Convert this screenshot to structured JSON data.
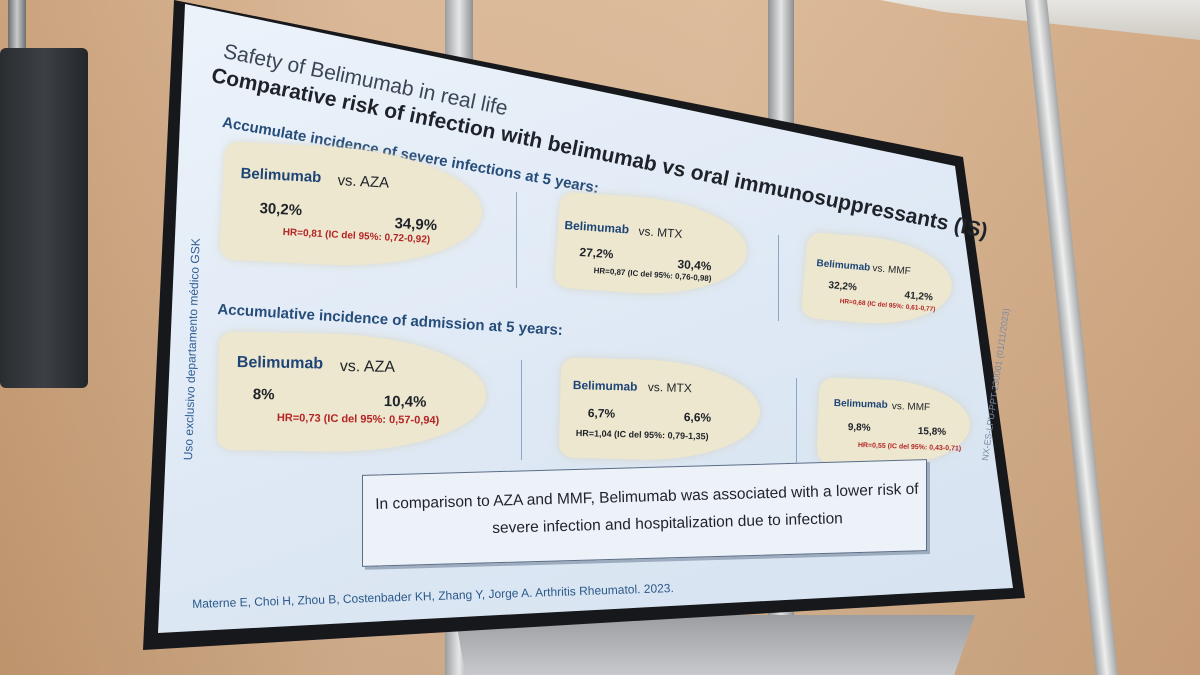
{
  "slide": {
    "title": "Safety of Belimumab in real life",
    "subtitle": "Comparative risk of infection with belimumab vs oral immunosuppressants (IS)",
    "side_note": "Uso exclusivo departamento médico GSK",
    "side_code": "NX-ES-LPU-PPT-230001 (01/11/2023)",
    "section1": {
      "heading": "Accumulate incidence of severe infections at 5 years:",
      "comparisons": [
        {
          "drug": "Belimumab",
          "vs": "vs. AZA",
          "left": "30,2%",
          "right": "34,9%",
          "hr": "HR=0,81 (IC del 95%: 0,72-0,92)"
        },
        {
          "drug": "Belimumab",
          "vs": "vs. MTX",
          "left": "27,2%",
          "right": "30,4%",
          "hr": "HR=0,87 (IC del 95%: 0,76-0,98)"
        },
        {
          "drug": "Belimumab",
          "vs": "vs. MMF",
          "left": "32,2%",
          "right": "41,2%",
          "hr": "HR=0,68 (IC del 95%: 0,61-0,77)"
        }
      ]
    },
    "section2": {
      "heading": "Accumulative incidence of admission at 5 years:",
      "comparisons": [
        {
          "drug": "Belimumab",
          "vs": "vs. AZA",
          "left": "8%",
          "right": "10,4%",
          "hr": "HR=0,73 (IC del 95%: 0,57-0,94)"
        },
        {
          "drug": "Belimumab",
          "vs": "vs. MTX",
          "left": "6,7%",
          "right": "6,6%",
          "hr": "HR=1,04 (IC del 95%: 0,79-1,35)"
        },
        {
          "drug": "Belimumab",
          "vs": "vs. MMF",
          "left": "9,8%",
          "right": "15,8%",
          "hr": "HR=0,55 (IC del 95%: 0,43-0,71)"
        }
      ]
    },
    "conclusion_line1": "In comparison to AZA and MMF, Belimumab was associated with a lower risk of",
    "conclusion_line2": "severe infection and hospitalization due to infection",
    "citation": "Materne E, Choi H, Zhou B, Costenbader KH, Zhang Y, Jorge A.  Arthritis Rheumatol. 2023."
  },
  "colors": {
    "title_blue": "#264d7a",
    "hr_red": "#b42424",
    "blob_beige": "#ede7cf",
    "screen_bg": "#e3ecf6"
  }
}
